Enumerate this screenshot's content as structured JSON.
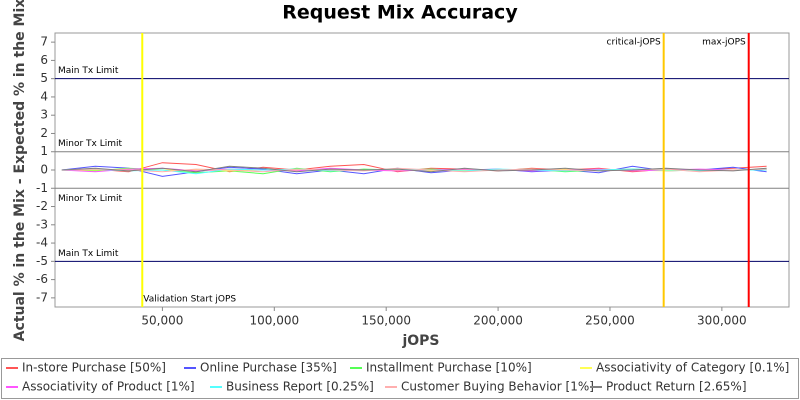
{
  "chart_data": {
    "type": "line",
    "title": "Request Mix Accuracy",
    "x_label": "jOPS",
    "y_label": "Actual % in the Mix - Expected % in the Mix",
    "x": [
      5000,
      20000,
      35000,
      50000,
      65000,
      80000,
      95000,
      110000,
      125000,
      140000,
      155000,
      170000,
      185000,
      200000,
      215000,
      230000,
      245000,
      260000,
      275000,
      290000,
      305000,
      320000
    ],
    "series": [
      {
        "name": "In-store Purchase [50%]",
        "color": "#ff5555",
        "values": [
          0.0,
          0.05,
          -0.1,
          0.4,
          0.3,
          -0.1,
          0.15,
          0.0,
          0.2,
          0.3,
          -0.1,
          0.1,
          0.05,
          -0.05,
          0.1,
          0.0,
          0.1,
          -0.1,
          0.05,
          0.0,
          0.1,
          0.2
        ]
      },
      {
        "name": "Online Purchase [35%]",
        "color": "#5555ff",
        "values": [
          0.0,
          0.2,
          0.1,
          -0.35,
          -0.1,
          0.15,
          0.05,
          -0.2,
          0.0,
          -0.2,
          0.1,
          -0.15,
          0.0,
          0.05,
          -0.1,
          0.0,
          -0.15,
          0.2,
          -0.05,
          0.0,
          0.15,
          -0.1
        ]
      },
      {
        "name": "Installment Purchase [10%]",
        "color": "#55ff55",
        "values": [
          0.0,
          -0.05,
          0.1,
          0.0,
          -0.15,
          -0.05,
          -0.2,
          0.1,
          -0.1,
          0.05,
          0.0,
          0.05,
          -0.05,
          0.0,
          0.05,
          -0.1,
          0.0,
          0.05,
          0.0,
          -0.05,
          0.0,
          0.05
        ]
      },
      {
        "name": "Associativity of Category [0.1%]",
        "color": "#ffff55",
        "values": [
          0.0,
          0.0,
          0.05,
          0.0,
          0.0,
          -0.05,
          0.0,
          0.0,
          0.05,
          0.0,
          0.0,
          -0.05,
          0.0,
          0.0,
          0.0,
          0.05,
          0.0,
          0.0,
          -0.05,
          0.0,
          0.0,
          0.0
        ]
      },
      {
        "name": "Associativity of Product [1%]",
        "color": "#ff55ff",
        "values": [
          0.0,
          -0.1,
          0.05,
          0.1,
          -0.05,
          0.05,
          0.0,
          -0.05,
          0.1,
          0.0,
          -0.05,
          0.0,
          0.05,
          0.0,
          -0.05,
          0.0,
          0.05,
          -0.05,
          0.0,
          0.05,
          0.0,
          0.0
        ]
      },
      {
        "name": "Business Report [0.25%]",
        "color": "#55ffff",
        "values": [
          0.0,
          0.05,
          -0.05,
          0.0,
          -0.2,
          0.05,
          0.0,
          0.05,
          -0.05,
          0.0,
          0.05,
          0.0,
          -0.05,
          0.05,
          0.0,
          -0.05,
          0.0,
          0.05,
          0.0,
          -0.05,
          0.0,
          0.0
        ]
      },
      {
        "name": "Customer Buying Behavior [1%]",
        "color": "#ffafaf",
        "values": [
          0.0,
          0.05,
          0.0,
          -0.1,
          0.05,
          0.0,
          -0.1,
          0.05,
          0.0,
          -0.05,
          0.1,
          0.0,
          -0.1,
          0.0,
          0.05,
          0.0,
          -0.05,
          0.0,
          0.05,
          -0.1,
          0.0,
          0.05
        ]
      },
      {
        "name": "Product Return [2.65%]",
        "color": "#808080",
        "values": [
          0.0,
          0.1,
          -0.05,
          0.1,
          -0.1,
          0.2,
          0.1,
          -0.1,
          0.05,
          0.0,
          0.05,
          -0.1,
          0.1,
          -0.05,
          0.0,
          0.1,
          -0.05,
          0.0,
          0.1,
          0.0,
          -0.05,
          0.1
        ]
      }
    ],
    "xlim": [
      2000,
      330000
    ],
    "ylim": [
      -7.5,
      7.5
    ],
    "xticks": [
      {
        "value": 50000,
        "label": "50,000"
      },
      {
        "value": 100000,
        "label": "100,000"
      },
      {
        "value": 150000,
        "label": "150,000"
      },
      {
        "value": 200000,
        "label": "200,000"
      },
      {
        "value": 250000,
        "label": "250,000"
      },
      {
        "value": 300000,
        "label": "300,000"
      }
    ],
    "yticks": [
      -7,
      -6,
      -5,
      -4,
      -3,
      -2,
      -1,
      0,
      1,
      2,
      3,
      4,
      5,
      6,
      7
    ],
    "hlines": [
      {
        "y": 5,
        "label": "Main Tx Limit",
        "color": "#000066"
      },
      {
        "y": 1,
        "label": "Minor Tx Limit",
        "color": "#808080"
      },
      {
        "y": -1,
        "label": "Minor Tx Limit",
        "color": "#808080"
      },
      {
        "y": -5,
        "label": "Main Tx Limit",
        "color": "#000066"
      }
    ],
    "vlines": [
      {
        "x": 41000,
        "label": "Validation Start jOPS",
        "color": "#ffff00"
      },
      {
        "x": 274000,
        "label": "critical-jOPS",
        "color": "#ffc800"
      },
      {
        "x": 312000,
        "label": "max-jOPS",
        "color": "#ff0000"
      }
    ]
  }
}
